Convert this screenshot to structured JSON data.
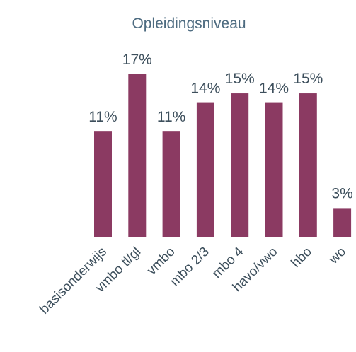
{
  "chart_data": {
    "type": "bar",
    "title": "Opleidingsniveau",
    "categories": [
      "basisonderwijs",
      "vmbo tl/gl",
      "vmbo",
      "mbo 2/3",
      "mbo 4",
      "havo/vwo",
      "hbo",
      "wo"
    ],
    "values": [
      11,
      17,
      11,
      14,
      15,
      14,
      15,
      3
    ],
    "value_labels": [
      "11%",
      "17%",
      "11%",
      "14%",
      "15%",
      "14%",
      "15%",
      "3%"
    ],
    "color": "#8b3a62"
  }
}
